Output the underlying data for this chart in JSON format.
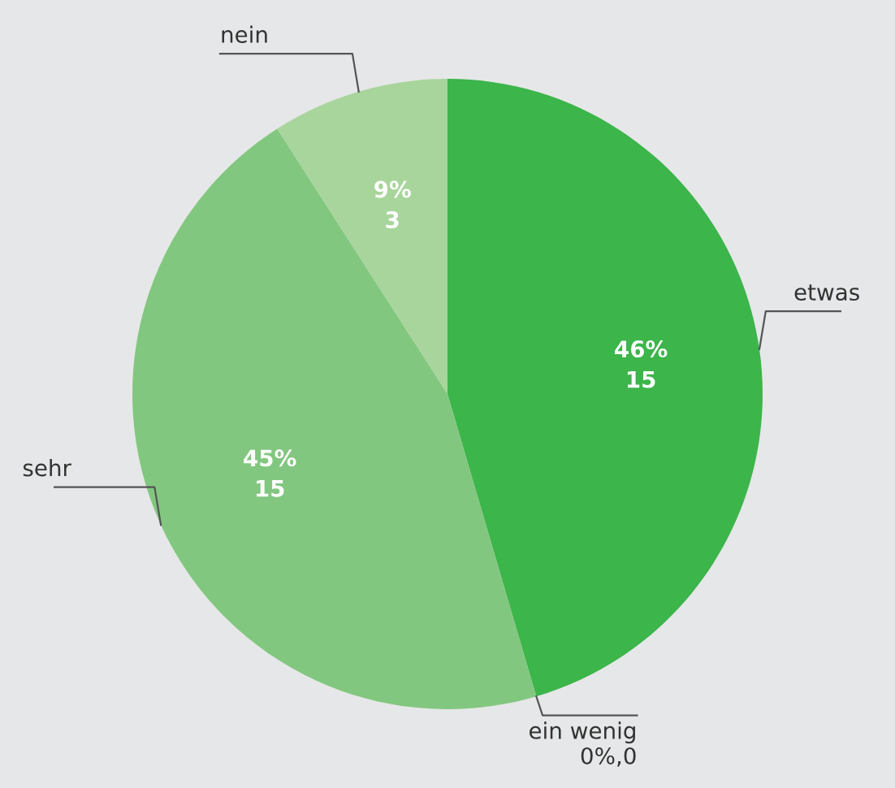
{
  "chart_data": {
    "type": "pie",
    "categories": [
      "etwas",
      "ein wenig",
      "sehr",
      "nein"
    ],
    "values": [
      15,
      0,
      15,
      3
    ],
    "value_labels": [
      "46%\n15",
      "0%,0",
      "45%\n15",
      "9%\n3"
    ],
    "colors": [
      "#3cb54a",
      "#5fbf60",
      "#82c77f",
      "#a8d59b"
    ]
  }
}
